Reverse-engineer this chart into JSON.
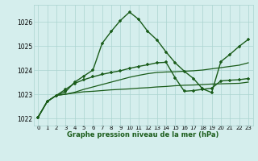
{
  "background_color": "#d5eeed",
  "grid_color": "#aad4d0",
  "line_color": "#1a5c1a",
  "xlabel": "Graphe pression niveau de la mer (hPa)",
  "xlim": [
    -0.5,
    23.5
  ],
  "ylim": [
    1021.7,
    1026.7
  ],
  "yticks": [
    1022,
    1023,
    1024,
    1025,
    1026
  ],
  "xticks": [
    0,
    1,
    2,
    3,
    4,
    5,
    6,
    7,
    8,
    9,
    10,
    11,
    12,
    13,
    14,
    15,
    16,
    17,
    18,
    19,
    20,
    21,
    22,
    23
  ],
  "series": [
    {
      "x": [
        0,
        1,
        2,
        3,
        4,
        5,
        6,
        7,
        8,
        9,
        10,
        11,
        12,
        13,
        14,
        15,
        16,
        17,
        18,
        19,
        20,
        21,
        22,
        23
      ],
      "y": [
        1022.05,
        1022.7,
        1022.95,
        1023.0,
        1023.05,
        1023.1,
        1023.12,
        1023.15,
        1023.18,
        1023.2,
        1023.22,
        1023.25,
        1023.27,
        1023.3,
        1023.32,
        1023.35,
        1023.37,
        1023.38,
        1023.4,
        1023.42,
        1023.43,
        1023.44,
        1023.45,
        1023.5
      ],
      "marker": false,
      "linewidth": 0.9
    },
    {
      "x": [
        0,
        1,
        2,
        3,
        4,
        5,
        6,
        7,
        8,
        9,
        10,
        11,
        12,
        13,
        14,
        15,
        16,
        17,
        18,
        19,
        20,
        21,
        22,
        23
      ],
      "y": [
        1022.05,
        1022.7,
        1022.95,
        1023.0,
        1023.08,
        1023.2,
        1023.3,
        1023.4,
        1023.5,
        1023.6,
        1023.7,
        1023.78,
        1023.85,
        1023.9,
        1023.92,
        1023.93,
        1023.95,
        1023.97,
        1024.0,
        1024.05,
        1024.1,
        1024.15,
        1024.2,
        1024.3
      ],
      "marker": false,
      "linewidth": 0.9
    },
    {
      "x": [
        0,
        1,
        2,
        3,
        4,
        5,
        6,
        7,
        8,
        9,
        10,
        11,
        12,
        13,
        14,
        15,
        16,
        17,
        18,
        19,
        20,
        21,
        22,
        23
      ],
      "y": [
        1022.05,
        1022.7,
        1022.95,
        1023.2,
        1023.45,
        1023.6,
        1023.72,
        1023.82,
        1023.9,
        1023.97,
        1024.07,
        1024.15,
        1024.22,
        1024.3,
        1024.32,
        1023.68,
        1023.12,
        1023.15,
        1023.2,
        1023.25,
        1023.55,
        1023.58,
        1023.6,
        1023.65
      ],
      "marker": true,
      "linewidth": 1.0
    },
    {
      "x": [
        0,
        1,
        2,
        3,
        4,
        5,
        6,
        7,
        8,
        9,
        10,
        11,
        12,
        13,
        14,
        15,
        16,
        17,
        18,
        19,
        20,
        21,
        22,
        23
      ],
      "y": [
        1022.05,
        1022.7,
        1022.95,
        1023.1,
        1023.5,
        1023.75,
        1024.0,
        1025.1,
        1025.6,
        1026.05,
        1026.4,
        1026.1,
        1025.6,
        1025.25,
        1024.75,
        1024.3,
        1023.95,
        1023.65,
        1023.22,
        1023.07,
        1024.35,
        1024.65,
        1024.98,
        1025.27
      ],
      "marker": true,
      "linewidth": 1.0
    }
  ]
}
